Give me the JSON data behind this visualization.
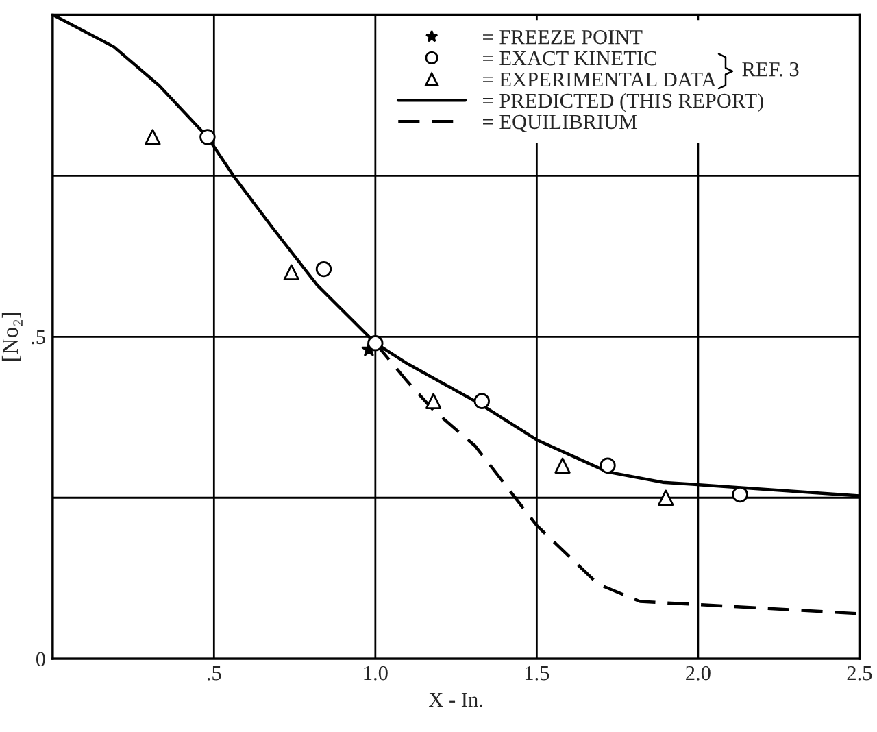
{
  "chart_data": {
    "type": "line",
    "xlabel": "X - In.",
    "ylabel": "[No₂]",
    "xlim": [
      0,
      2.5
    ],
    "ylim": [
      0,
      1.0
    ],
    "xticks": [
      {
        "value": 0,
        "label": null
      },
      {
        "value": 0.5,
        "label": ".5"
      },
      {
        "value": 1.0,
        "label": "1.0"
      },
      {
        "value": 1.5,
        "label": "1.5"
      },
      {
        "value": 2.0,
        "label": "2.0"
      },
      {
        "value": 2.5,
        "label": "2.5"
      }
    ],
    "yticks": [
      0,
      {
        "value": 0.25,
        "label": null
      },
      {
        "value": 0.5,
        "label": ".5"
      },
      {
        "value": 0.75,
        "label": null
      }
    ],
    "grid": true,
    "legend": "top right",
    "series": [
      {
        "name": "= FREEZE POINT",
        "type": "scatter",
        "marker": "star",
        "color": "#000000",
        "x": [
          0.98
        ],
        "values": [
          0.48
        ]
      },
      {
        "name": "= EXACT KINETIC",
        "type": "scatter",
        "marker": "circle",
        "color": "#000000",
        "x": [
          0.48,
          0.84,
          1.0,
          1.33,
          1.72,
          2.13
        ],
        "values": [
          0.81,
          0.605,
          0.49,
          0.4,
          0.3,
          0.255
        ]
      },
      {
        "name": "= EXPERIMENTAL DATA",
        "type": "scatter",
        "marker": "triangle",
        "color": "#000000",
        "x": [
          0.31,
          0.74,
          1.18,
          1.58,
          1.9
        ],
        "values": [
          0.81,
          0.6,
          0.4,
          0.3,
          0.25
        ]
      },
      {
        "name": "= PREDICTED (THIS REPORT)",
        "line_style": "solid",
        "color": "#000000",
        "x": [
          0,
          0.19,
          0.33,
          0.48,
          0.56,
          0.68,
          0.82,
          1.0,
          1.1,
          1.32,
          1.5,
          1.72,
          1.89,
          2.01,
          2.5
        ],
        "values": [
          1.0,
          0.95,
          0.89,
          0.81,
          0.75,
          0.67,
          0.58,
          0.49,
          0.458,
          0.397,
          0.34,
          0.29,
          0.274,
          0.27,
          0.253
        ]
      },
      {
        "name": "= EQUILIBRIUM",
        "line_style": "dashed",
        "color": "#000000",
        "x": [
          1.0,
          1.1,
          1.18,
          1.31,
          1.5,
          1.69,
          1.82,
          2.01,
          2.5
        ],
        "values": [
          0.49,
          0.43,
          0.386,
          0.33,
          0.207,
          0.116,
          0.089,
          0.084,
          0.07
        ]
      }
    ],
    "annotations": [
      "REF. 3"
    ]
  }
}
